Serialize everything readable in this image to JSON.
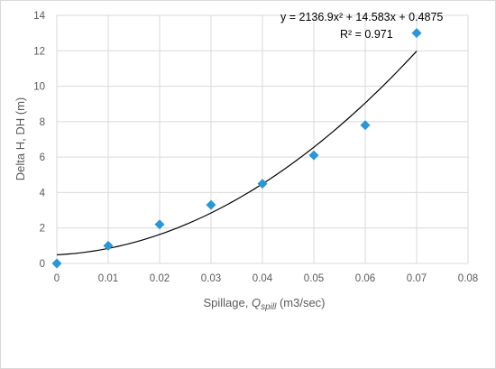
{
  "chart_data": {
    "type": "scatter",
    "x": [
      0,
      0.01,
      0.02,
      0.03,
      0.04,
      0.05,
      0.06,
      0.07
    ],
    "y": [
      0,
      1.0,
      2.2,
      3.3,
      4.5,
      6.1,
      7.8,
      13.0
    ],
    "xlim": [
      0,
      0.08
    ],
    "ylim": [
      0,
      14
    ],
    "xticks": [
      "0",
      "0.01",
      "0.02",
      "0.03",
      "0.04",
      "0.05",
      "0.06",
      "0.07",
      "0.08"
    ],
    "yticks": [
      "0",
      "2",
      "4",
      "6",
      "8",
      "10",
      "12",
      "14"
    ],
    "xlabel_prefix": "Spillage, ",
    "xlabel_symbol": "Q",
    "xlabel_subscript": "spill",
    "xlabel_suffix": " (m3/sec)",
    "ylabel": "Delta H, DH (m)",
    "grid": true,
    "legend": false,
    "trendline": {
      "type": "polynomial",
      "coefficients": [
        2136.9,
        14.583,
        0.4875
      ],
      "x_range": [
        0,
        0.07
      ],
      "equation_text": "y = 2136.9x² + 14.583x + 0.4875",
      "r2_text": "R² = 0.971"
    },
    "colors": {
      "marker": "#2e96d1",
      "trendline": "#000000",
      "grid": "#d9d9d9",
      "axis_text": "#595959"
    }
  }
}
